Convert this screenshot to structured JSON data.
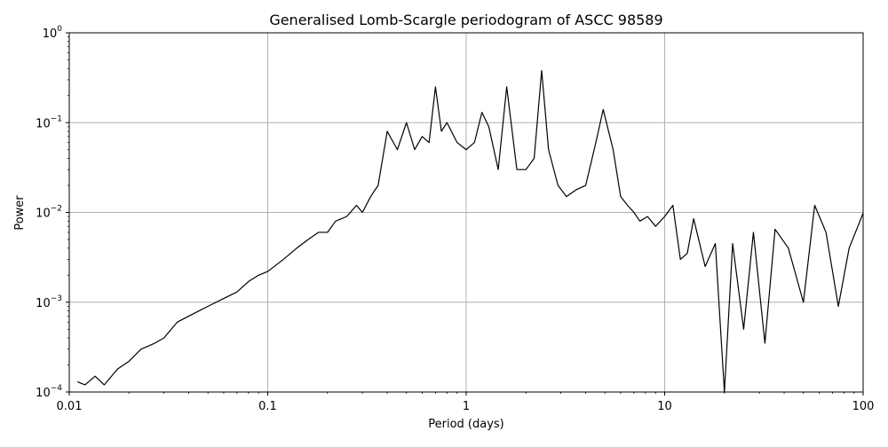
{
  "chart_data": {
    "type": "line",
    "title": "Generalised Lomb-Scargle periodogram of ASCC 98589",
    "xlabel": "Period (days)",
    "ylabel": "Power",
    "xscale": "log",
    "yscale": "log",
    "xlim": [
      0.01,
      100
    ],
    "ylim": [
      0.0001,
      1
    ],
    "grid": true,
    "line_color": "#000000",
    "grid_color": "#b0b0b0",
    "x_ticks": [
      {
        "value": 0.01,
        "label": "0.01"
      },
      {
        "value": 0.1,
        "label": "0.1"
      },
      {
        "value": 1,
        "label": "1"
      },
      {
        "value": 10,
        "label": "10"
      },
      {
        "value": 100,
        "label": "100"
      }
    ],
    "y_ticks": [
      {
        "value": 0.0001,
        "base": "10",
        "exp": "−4"
      },
      {
        "value": 0.001,
        "base": "10",
        "exp": "−3"
      },
      {
        "value": 0.01,
        "base": "10",
        "exp": "−2"
      },
      {
        "value": 0.1,
        "base": "10",
        "exp": "−1"
      },
      {
        "value": 1,
        "base": "10",
        "exp": "0"
      }
    ],
    "series": [
      {
        "x": [
          0.011,
          0.012,
          0.0135,
          0.015,
          0.0175,
          0.02,
          0.023,
          0.027,
          0.03,
          0.035,
          0.04,
          0.045,
          0.05,
          0.06,
          0.07,
          0.08,
          0.09,
          0.1,
          0.12,
          0.14,
          0.16,
          0.18,
          0.2,
          0.22,
          0.25,
          0.28,
          0.3,
          0.33,
          0.36,
          0.4,
          0.45,
          0.5,
          0.55,
          0.6,
          0.65,
          0.7,
          0.75,
          0.8,
          0.9,
          1.0,
          1.1,
          1.2,
          1.3,
          1.45,
          1.6,
          1.8,
          2.0,
          2.2,
          2.4,
          2.6,
          2.9,
          3.2,
          3.6,
          4.0,
          4.5,
          4.9,
          5.5,
          6.0,
          6.5,
          7.0,
          7.5,
          8.2,
          9.0,
          10.0,
          11.0,
          12.0,
          13.0,
          14.0,
          16.0,
          18.0,
          20.0,
          22.0,
          25.0,
          28.0,
          32.0,
          36.0,
          42.0,
          50.0,
          57.0,
          65.0,
          75.0,
          85.0,
          100.0
        ],
        "y": [
          0.00013,
          0.00012,
          0.00015,
          0.00012,
          0.00018,
          0.00022,
          0.0003,
          0.00035,
          0.0004,
          0.0006,
          0.0007,
          0.0008,
          0.0009,
          0.0011,
          0.0013,
          0.0017,
          0.002,
          0.0022,
          0.003,
          0.004,
          0.005,
          0.006,
          0.006,
          0.008,
          0.009,
          0.012,
          0.01,
          0.015,
          0.02,
          0.08,
          0.05,
          0.1,
          0.05,
          0.07,
          0.06,
          0.25,
          0.08,
          0.1,
          0.06,
          0.05,
          0.06,
          0.13,
          0.09,
          0.03,
          0.25,
          0.03,
          0.03,
          0.04,
          0.38,
          0.05,
          0.02,
          0.015,
          0.018,
          0.02,
          0.06,
          0.14,
          0.05,
          0.015,
          0.012,
          0.01,
          0.008,
          0.009,
          0.007,
          0.009,
          0.012,
          0.003,
          0.0035,
          0.0085,
          0.0025,
          0.0045,
          0.0001,
          0.0045,
          0.0005,
          0.006,
          0.00035,
          0.0065,
          0.004,
          0.001,
          0.012,
          0.006,
          0.0009,
          0.004,
          0.0098
        ],
        "name": ""
      }
    ]
  }
}
